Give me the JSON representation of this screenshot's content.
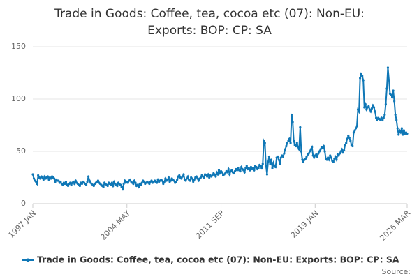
{
  "chart_data": {
    "type": "line",
    "title": [
      "Trade in Goods: Coffee, tea, cocoa etc (07): Non-EU:",
      "Exports: BOP: CP: SA"
    ],
    "source": "Source:",
    "ylim": [
      0,
      150
    ],
    "yticks": [
      0,
      50,
      100,
      150
    ],
    "grid": true,
    "legend": "bottom",
    "categories": [
      "1997 JAN",
      null,
      null,
      null,
      null,
      null,
      null,
      null,
      null,
      null,
      null,
      null,
      null,
      null,
      null,
      null,
      null,
      null,
      null,
      null,
      null,
      null,
      null,
      null,
      null,
      null,
      null,
      null,
      null,
      null,
      null,
      null,
      null,
      null,
      null,
      null,
      null,
      null,
      null,
      null,
      null,
      null,
      null,
      null,
      null,
      null,
      null,
      null,
      null,
      null,
      null,
      null,
      null,
      null,
      null,
      null,
      null,
      null,
      null,
      null,
      null,
      null,
      null,
      null,
      null,
      null,
      null,
      null,
      null,
      null,
      null,
      null,
      null,
      null,
      null,
      null,
      null,
      null,
      null,
      null,
      null,
      null,
      null,
      null,
      null,
      null,
      null,
      null,
      "2004 MAY",
      null,
      null,
      null,
      null,
      null,
      null,
      null,
      null,
      null,
      null,
      null,
      null,
      null,
      null,
      null,
      null,
      null,
      null,
      null,
      null,
      null,
      null,
      null,
      null,
      null,
      null,
      null,
      null,
      null,
      null,
      null,
      null,
      null,
      null,
      null,
      null,
      null,
      null,
      null,
      null,
      null,
      null,
      null,
      null,
      null,
      null,
      null,
      null,
      null,
      null,
      null,
      null,
      null,
      null,
      null,
      null,
      null,
      null,
      null,
      null,
      null,
      null,
      null,
      null,
      null,
      null,
      null,
      null,
      null,
      null,
      null,
      null,
      null,
      null,
      null,
      null,
      null,
      null,
      null,
      null,
      null,
      null,
      null,
      null,
      null,
      null,
      null,
      "2011 SEP",
      null,
      null,
      null,
      null,
      null,
      null,
      null,
      null,
      null,
      null,
      null,
      null,
      null,
      null,
      null,
      null,
      null,
      null,
      null,
      null,
      null,
      null,
      null,
      null,
      null,
      null,
      null,
      null,
      null,
      null,
      null,
      null,
      null,
      null,
      null,
      null,
      null,
      null,
      null,
      null,
      null,
      null,
      null,
      null,
      null,
      null,
      null,
      null,
      null,
      null,
      null,
      null,
      null,
      null,
      null,
      null,
      null,
      null,
      null,
      null,
      null,
      null,
      null,
      null,
      null,
      null,
      null,
      null,
      null,
      null,
      null,
      null,
      null,
      null,
      null,
      null,
      null,
      null,
      null,
      null,
      null,
      null,
      null,
      null,
      null,
      null,
      null,
      "2019 JAN",
      null,
      null,
      null,
      null,
      null,
      null,
      null,
      null,
      null,
      null,
      null,
      null,
      null,
      null,
      null,
      null,
      null,
      null,
      null,
      null,
      null,
      null,
      null,
      null,
      null,
      null,
      null,
      null,
      null,
      null,
      null,
      null,
      null,
      null,
      null,
      null,
      null,
      null,
      null,
      null,
      null,
      null,
      null,
      null,
      null,
      null,
      null,
      null,
      null,
      null,
      null,
      null,
      null,
      null,
      null,
      null,
      null,
      null,
      null,
      null,
      null,
      null,
      null,
      null,
      null,
      null,
      null,
      null,
      null,
      null,
      null,
      null,
      null,
      null,
      null,
      null,
      null,
      null,
      null,
      null,
      null,
      null,
      null,
      null,
      null,
      "2026 MAR"
    ],
    "series": [
      {
        "name": "Trade in Goods: Coffee, tea, cocoa etc (07): Non-EU: Exports: BOP: CP: SA",
        "color": "#0f77b6",
        "values": [
          28,
          24,
          22,
          21,
          19,
          27,
          25,
          24,
          26,
          25,
          23,
          26,
          24,
          25,
          26,
          23,
          25,
          24,
          26,
          25,
          24,
          21,
          23,
          22,
          22,
          20,
          21,
          19,
          18,
          20,
          19,
          21,
          18,
          17,
          19,
          20,
          18,
          20,
          21,
          19,
          22,
          20,
          19,
          18,
          17,
          20,
          19,
          21,
          20,
          19,
          18,
          21,
          26,
          22,
          20,
          19,
          18,
          17,
          19,
          20,
          21,
          22,
          20,
          19,
          18,
          17,
          16,
          20,
          19,
          18,
          17,
          20,
          19,
          18,
          20,
          17,
          21,
          19,
          18,
          17,
          20,
          19,
          18,
          16,
          14,
          19,
          22,
          20,
          21,
          20,
          22,
          23,
          21,
          20,
          19,
          22,
          20,
          17,
          18,
          16,
          19,
          18,
          20,
          22,
          21,
          19,
          20,
          21,
          20,
          19,
          21,
          22,
          20,
          21,
          22,
          21,
          20,
          23,
          21,
          22,
          23,
          22,
          19,
          21,
          24,
          22,
          23,
          25,
          21,
          22,
          24,
          23,
          22,
          20,
          21,
          23,
          26,
          27,
          25,
          24,
          26,
          28,
          23,
          22,
          24,
          26,
          23,
          22,
          25,
          24,
          21,
          23,
          25,
          26,
          24,
          22,
          24,
          25,
          27,
          26,
          25,
          28,
          27,
          26,
          28,
          25,
          27,
          26,
          27,
          29,
          28,
          26,
          30,
          28,
          32,
          29,
          31,
          30,
          27,
          28,
          29,
          31,
          30,
          33,
          28,
          31,
          32,
          30,
          29,
          31,
          33,
          32,
          34,
          32,
          31,
          35,
          33,
          32,
          30,
          34,
          36,
          33,
          34,
          32,
          35,
          33,
          34,
          32,
          36,
          35,
          33,
          34,
          37,
          36,
          34,
          38,
          60,
          58,
          36,
          28,
          40,
          45,
          38,
          42,
          34,
          39,
          36,
          35,
          44,
          45,
          42,
          38,
          44,
          46,
          45,
          48,
          52,
          55,
          58,
          60,
          62,
          58,
          85,
          78,
          60,
          56,
          55,
          58,
          54,
          52,
          73,
          50,
          42,
          40,
          42,
          43,
          45,
          47,
          48,
          50,
          52,
          54,
          46,
          44,
          46,
          47,
          45,
          48,
          50,
          52,
          54,
          53,
          55,
          50,
          43,
          42,
          44,
          42,
          46,
          44,
          41,
          40,
          43,
          45,
          42,
          47,
          46,
          48,
          50,
          52,
          49,
          51,
          56,
          58,
          62,
          65,
          63,
          60,
          56,
          55,
          68,
          70,
          72,
          74,
          90,
          88,
          120,
          124,
          122,
          118,
          92,
          95,
          90,
          92,
          93,
          90,
          88,
          91,
          94,
          92,
          88,
          82,
          80,
          82,
          81,
          80,
          82,
          80,
          82,
          85,
          95,
          110,
          130,
          118,
          105,
          104,
          102,
          108,
          98,
          85,
          80,
          72,
          66,
          70,
          68,
          72,
          66,
          70,
          67,
          68,
          67
        ]
      }
    ]
  }
}
